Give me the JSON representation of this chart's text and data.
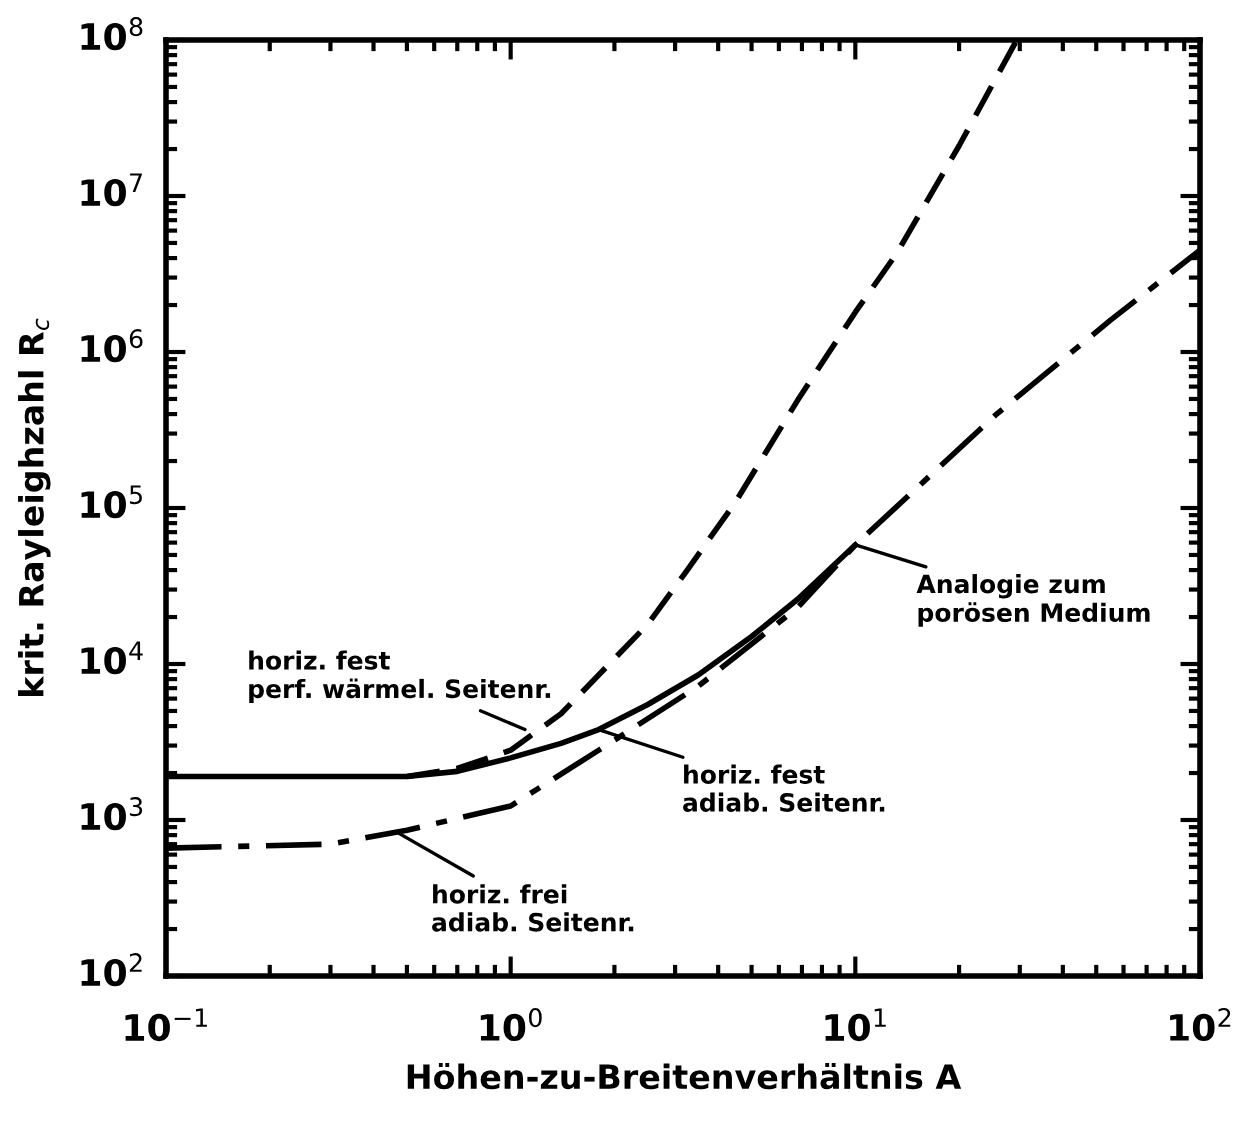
{
  "chart_data": {
    "type": "line",
    "xlabel": "Höhen-zu-Breitenverhältnis A",
    "ylabel": "krit. Rayleighzahl R$_{c}$",
    "log": "xy",
    "xlim": [
      0.1,
      100
    ],
    "ylim": [
      100,
      100000000
    ],
    "xticks": [
      {
        "value": 0.1,
        "label": "10$^{−1}$"
      },
      {
        "value": 1,
        "label": "10$^{0}$"
      },
      {
        "value": 10,
        "label": "10$^{1}$"
      },
      {
        "value": 100,
        "label": "10$^{2}$"
      }
    ],
    "yticks": [
      {
        "value": 100,
        "label": "10$^{2}$"
      },
      {
        "value": 1000,
        "label": "10$^{3}$"
      },
      {
        "value": 10000,
        "label": "10$^{4}$"
      },
      {
        "value": 100000,
        "label": "10$^{5}$"
      },
      {
        "value": 1000000,
        "label": "10$^{6}$"
      },
      {
        "value": 10000000,
        "label": "10$^{7}$"
      },
      {
        "value": 100000000,
        "label": "10$^{8}$"
      }
    ],
    "grid": false,
    "marker": "none",
    "series": [
      {
        "color": "#000000",
        "line_style": "dashed",
        "x": [
          0.5,
          0.7,
          1,
          1.4,
          1.8,
          2.5,
          3.2,
          4.5,
          6.8,
          10,
          13.2,
          20,
          29.4
        ],
        "values": [
          1900,
          2140,
          2800,
          4800,
          8500,
          18000,
          38000,
          110000,
          490000,
          1800000,
          4300000,
          21000000,
          100000000
        ]
      },
      {
        "color": "#000000",
        "line_style": "solid",
        "x": [
          0.1,
          0.5,
          0.7,
          1,
          1.4,
          1.8,
          2.5,
          3.5,
          5,
          6.8,
          10
        ],
        "values": [
          1900,
          1900,
          2050,
          2500,
          3100,
          3800,
          5500,
          8500,
          15000,
          26000,
          58000
        ]
      },
      {
        "color": "#000000",
        "line_style": "dashdot",
        "x": [
          0.1,
          0.3,
          0.5,
          1,
          1.8,
          3.5,
          6.8,
          10,
          25.7,
          55,
          100
        ],
        "values": [
          660,
          700,
          860,
          1230,
          2800,
          7200,
          23000,
          58000,
          400000,
          1600000,
          4500000
        ]
      }
    ],
    "annotations": [
      {
        "text": "horiz. fest\nperf. wärmel. Seitenr.",
        "x": 1.1,
        "y": 3800
      },
      {
        "text": "horiz. fest\nadiab. Seitenr.",
        "x": 1.8,
        "y": 3800
      },
      {
        "text": "horiz. frei\nadiab. Seitenr.",
        "x": 0.47,
        "y": 830
      },
      {
        "text": "Analogie zum\nporösen Medium",
        "x": 10,
        "y": 58000
      }
    ]
  }
}
